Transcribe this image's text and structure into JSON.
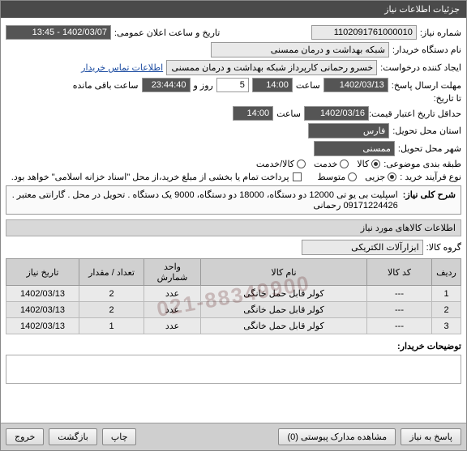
{
  "window": {
    "title": "جزئیات اطلاعات نیاز"
  },
  "fields": {
    "need_number": {
      "label": "شماره نیاز:",
      "value": "1102091761000010"
    },
    "announce": {
      "label": "تاریخ و ساعت اعلان عمومی:",
      "value": "1402/03/07 - 13:45"
    },
    "buyer_org": {
      "label": "نام دستگاه خریدار:",
      "value": "شبکه بهداشت و درمان ممسنی"
    },
    "requester": {
      "label": "ایجاد کننده درخواست:",
      "value": "خسرو رحمانی کارپرداز شبکه بهداشت و درمان ممسنی"
    },
    "contact": {
      "label": "اطلاعات تماس خریدار"
    },
    "reply_deadline": {
      "label": "مهلت ارسال پاسخ:",
      "date": "1402/03/13",
      "time": "14:00",
      "days_label": "روز و",
      "days": "5",
      "remain_label": "ساعت باقی مانده",
      "remain": "23:44:40"
    },
    "ta_tarikh": {
      "label": "تا تاریخ:"
    },
    "price_valid": {
      "label": "حداقل تاریخ اعتبار قیمت: تا تاریخ:",
      "date": "1402/03/16",
      "time": "14:00",
      "time_label": "ساعت"
    },
    "province": {
      "label": "استان محل تحویل:",
      "value": "فارس"
    },
    "city": {
      "label": "شهر محل تحویل:",
      "value": "ممسنی"
    },
    "category": {
      "label": "طبقه بندی موضوعی:",
      "options": [
        "کالا",
        "خدمت",
        "کالا/خدمت"
      ],
      "selected": 0
    },
    "process": {
      "label": "نوع فرآیند خرید :",
      "options": [
        "جزیی",
        "متوسط"
      ],
      "selected": 0
    },
    "pay_note": "پرداخت تمام یا بخشی از مبلغ خرید،از محل \"اسناد خزانه اسلامی\" خواهد بود.",
    "description": {
      "label": "شرح کلی نیاز:",
      "text": "اسپلیت بی یو تی 12000 دو دستگاه، 18000 دو دستگاه، 9000 یک دستگاه . تحویل در محل . گارانتی معتبر . 09171224426 رحمانی"
    },
    "goods_section": {
      "title": "اطلاعات کالاهای مورد نیاز"
    },
    "goods_group": {
      "label": "گروه کالا:",
      "value": "ابزارآلات الکتریکی"
    },
    "table": {
      "columns": [
        "ردیف",
        "کد کالا",
        "نام کالا",
        "واحد شمارش",
        "تعداد / مقدار",
        "تاریخ نیاز"
      ],
      "col_widths": [
        "36px",
        "80px",
        "auto",
        "70px",
        "80px",
        "90px"
      ],
      "rows": [
        [
          "1",
          "---",
          "کولر قابل حمل خانگی",
          "عدد",
          "2",
          "1402/03/13"
        ],
        [
          "2",
          "---",
          "کولر قابل حمل خانگی",
          "عدد",
          "2",
          "1402/03/13"
        ],
        [
          "3",
          "---",
          "کولر قابل حمل خانگی",
          "عدد",
          "1",
          "1402/03/13"
        ]
      ]
    },
    "buyer_notes": {
      "label": "توضیحات خریدار:"
    }
  },
  "footer": {
    "respond": "پاسخ به نیاز",
    "attachments": "مشاهده مدارک پیوستی (0)",
    "print": "چاپ",
    "back": "بازگشت",
    "exit": "خروج"
  },
  "watermark": "021-88349900",
  "colors": {
    "titlebar": "#4a4a4a",
    "section": "#d8d8d8",
    "field_dark": "#555555",
    "footer": "#cfcfcf"
  }
}
